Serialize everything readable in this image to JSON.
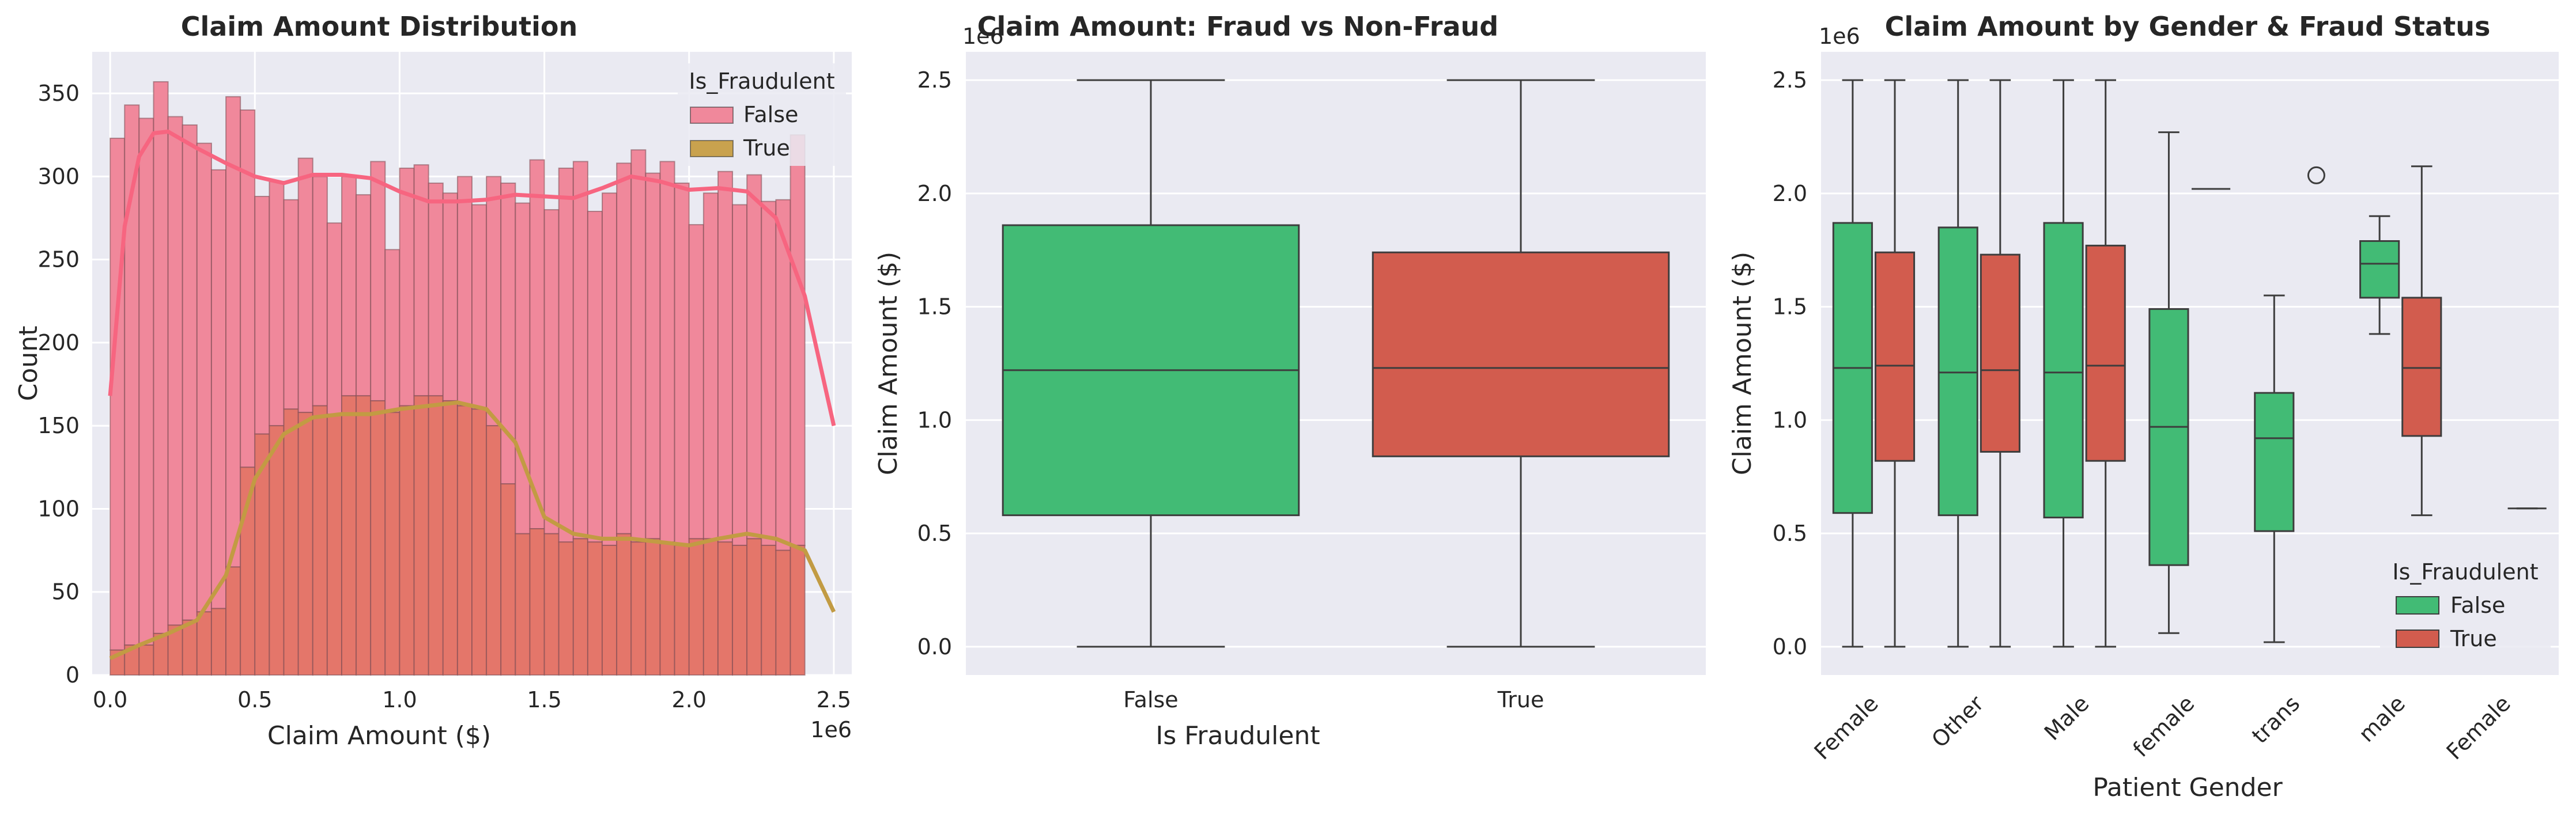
{
  "chart_data": [
    {
      "type": "histogram",
      "title": "Claim Amount Distribution",
      "xlabel": "Claim Amount ($)",
      "ylabel": "Count",
      "x_offset_label": "1e6",
      "xlim": [
        -0.062,
        2.562
      ],
      "ylim": [
        0,
        375
      ],
      "xticks": [
        0.0,
        0.5,
        1.0,
        1.5,
        2.0,
        2.5
      ],
      "xtick_labels": [
        "0.0",
        "0.5",
        "1.0",
        "1.5",
        "2.0",
        "2.5"
      ],
      "yticks": [
        0,
        50,
        100,
        150,
        200,
        250,
        300,
        350
      ],
      "ytick_labels": [
        "0",
        "50",
        "100",
        "150",
        "200",
        "250",
        "300",
        "350"
      ],
      "legend_title": "Is_Fraudulent",
      "legend_position": "top-right",
      "bin_start": 0.0,
      "bin_width": 0.05,
      "colors": {
        "False": "#f0889b",
        "True": "#c9a24e",
        "overlap": "#e4766a",
        "kde_false": "#f76580",
        "kde_true": "#c29b43"
      },
      "series": [
        {
          "name": "False",
          "counts": [
            323,
            343,
            335,
            357,
            336,
            331,
            320,
            304,
            348,
            340,
            288,
            297,
            286,
            311,
            300,
            272,
            300,
            289,
            309,
            256,
            305,
            307,
            296,
            290,
            300,
            283,
            300,
            296,
            284,
            310,
            280,
            305,
            309,
            279,
            290,
            308,
            316,
            302,
            309,
            296,
            271,
            290,
            303,
            283,
            301,
            285,
            286,
            325
          ]
        },
        {
          "name": "True",
          "counts": [
            15,
            18,
            18,
            25,
            30,
            33,
            38,
            40,
            65,
            125,
            145,
            150,
            160,
            158,
            162,
            157,
            168,
            168,
            165,
            158,
            162,
            168,
            168,
            165,
            162,
            160,
            150,
            115,
            85,
            88,
            85,
            80,
            82,
            80,
            78,
            85,
            80,
            82,
            80,
            78,
            82,
            82,
            80,
            78,
            82,
            78,
            75,
            78
          ]
        }
      ],
      "kde": [
        {
          "name": "False",
          "x": [
            0,
            0.05,
            0.1,
            0.15,
            0.2,
            0.3,
            0.4,
            0.5,
            0.6,
            0.7,
            0.8,
            0.9,
            1.0,
            1.1,
            1.2,
            1.3,
            1.4,
            1.5,
            1.6,
            1.7,
            1.8,
            1.9,
            2.0,
            2.1,
            2.2,
            2.3,
            2.4,
            2.5
          ],
          "y": [
            168,
            270,
            312,
            326,
            327,
            317,
            308,
            300,
            296,
            301,
            301,
            299,
            291,
            285,
            285,
            286,
            289,
            288,
            287,
            293,
            300,
            297,
            292,
            293,
            291,
            275,
            228,
            150
          ]
        },
        {
          "name": "True",
          "x": [
            0,
            0.1,
            0.2,
            0.3,
            0.4,
            0.5,
            0.6,
            0.7,
            0.8,
            0.9,
            1.0,
            1.1,
            1.2,
            1.3,
            1.4,
            1.5,
            1.6,
            1.7,
            1.8,
            1.9,
            2.0,
            2.1,
            2.2,
            2.3,
            2.4,
            2.5
          ],
          "y": [
            10,
            18,
            25,
            33,
            60,
            118,
            145,
            155,
            157,
            157,
            160,
            162,
            164,
            160,
            140,
            95,
            85,
            82,
            82,
            80,
            78,
            82,
            85,
            82,
            75,
            38
          ]
        }
      ]
    },
    {
      "type": "box",
      "title": "Claim Amount: Fraud vs Non-Fraud",
      "xlabel": "Is Fraudulent",
      "ylabel": "Claim Amount ($)",
      "y_offset_label": "1e6",
      "ylim": [
        -0.125,
        2.625
      ],
      "yticks": [
        0.0,
        0.5,
        1.0,
        1.5,
        2.0,
        2.5
      ],
      "ytick_labels": [
        "0.0",
        "0.5",
        "1.0",
        "1.5",
        "2.0",
        "2.5"
      ],
      "categories": [
        "False",
        "True"
      ],
      "boxes": [
        {
          "name": "False",
          "color": "#42bb75",
          "whislo": 0.0,
          "q1": 0.58,
          "med": 1.22,
          "q3": 1.86,
          "whishi": 2.5
        },
        {
          "name": "True",
          "color": "#d25c4e",
          "whislo": 0.0,
          "q1": 0.84,
          "med": 1.23,
          "q3": 1.74,
          "whishi": 2.5
        }
      ]
    },
    {
      "type": "box",
      "title": "Claim Amount by Gender & Fraud Status",
      "xlabel": "Patient Gender",
      "ylabel": "Claim Amount ($)",
      "y_offset_label": "1e6",
      "ylim": [
        -0.125,
        2.625
      ],
      "yticks": [
        0.0,
        0.5,
        1.0,
        1.5,
        2.0,
        2.5
      ],
      "ytick_labels": [
        "0.0",
        "0.5",
        "1.0",
        "1.5",
        "2.0",
        "2.5"
      ],
      "categories": [
        "Female",
        "Other",
        "Male",
        "female",
        "trans",
        "male",
        "Female"
      ],
      "legend_title": "Is_Fraudulent",
      "legend_position": "lower-right",
      "series": [
        {
          "name": "False",
          "color": "#42bb75",
          "boxes": [
            {
              "whislo": 0.0,
              "q1": 0.59,
              "med": 1.23,
              "q3": 1.87,
              "whishi": 2.5
            },
            {
              "whislo": 0.0,
              "q1": 0.58,
              "med": 1.21,
              "q3": 1.85,
              "whishi": 2.5
            },
            {
              "whislo": 0.0,
              "q1": 0.57,
              "med": 1.21,
              "q3": 1.87,
              "whishi": 2.5
            },
            {
              "whislo": 0.06,
              "q1": 0.36,
              "med": 0.97,
              "q3": 1.49,
              "whishi": 2.27
            },
            {
              "whislo": 0.02,
              "q1": 0.51,
              "med": 0.92,
              "q3": 1.12,
              "whishi": 1.55
            },
            {
              "whislo": 1.38,
              "q1": 1.54,
              "med": 1.69,
              "q3": 1.79,
              "whishi": 1.9
            },
            null
          ]
        },
        {
          "name": "True",
          "color": "#d25c4e",
          "boxes": [
            {
              "whislo": 0.0,
              "q1": 0.82,
              "med": 1.24,
              "q3": 1.74,
              "whishi": 2.5
            },
            {
              "whislo": 0.0,
              "q1": 0.86,
              "med": 1.22,
              "q3": 1.73,
              "whishi": 2.5
            },
            {
              "whislo": 0.0,
              "q1": 0.82,
              "med": 1.24,
              "q3": 1.77,
              "whishi": 2.5
            },
            {
              "whislo": 2.02,
              "q1": 2.02,
              "med": 2.02,
              "q3": 2.02,
              "whishi": 2.02
            },
            {
              "whislo": 0.0,
              "q1": 0.0,
              "med": 0.0,
              "q3": 0.0,
              "whishi": 0.0,
              "fliers": [
                2.08
              ],
              "box_hidden": true
            },
            {
              "whislo": 0.58,
              "q1": 0.93,
              "med": 1.23,
              "q3": 1.54,
              "whishi": 2.12
            },
            {
              "whislo": 0.61,
              "q1": 0.61,
              "med": 0.61,
              "q3": 0.61,
              "whishi": 0.61
            }
          ]
        }
      ]
    }
  ]
}
